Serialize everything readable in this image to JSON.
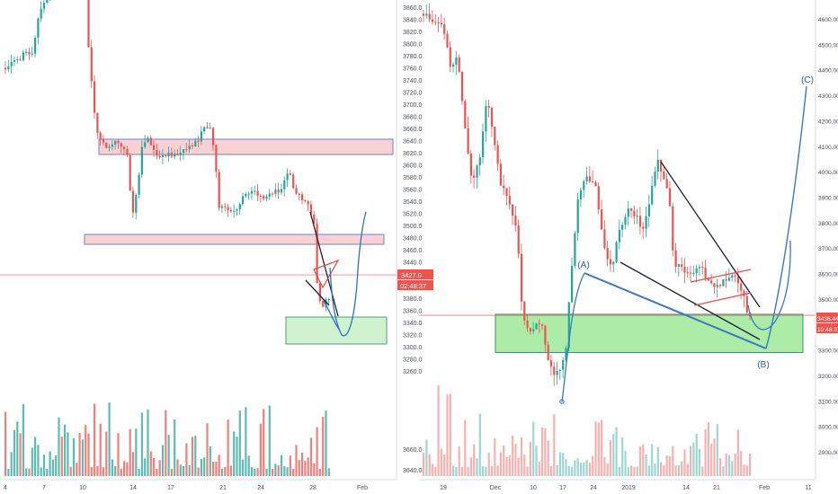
{
  "chart_data": [
    {
      "type": "candlestick",
      "title": "",
      "x_ticks": [
        "4",
        "7",
        "10",
        "14",
        "17",
        "21",
        "24",
        "28",
        "Feb"
      ],
      "y_ticks": [
        "3260.0",
        "3280.0",
        "3300.0",
        "3320.0",
        "3340.0",
        "3360.0",
        "3380.0",
        "3400.0",
        "3420.0",
        "3440.0",
        "3460.0",
        "3480.0",
        "3500.0",
        "3520.0",
        "3540.0",
        "3560.0",
        "3580.0",
        "3600.0",
        "3620.0",
        "3640.0",
        "3660.0",
        "3680.0",
        "3700.0",
        "3720.0",
        "3740.0",
        "3760.0",
        "3780.0",
        "3800.0",
        "3820.0",
        "3840.0",
        "3860.0"
      ],
      "volume_ticks": [
        "3640.0",
        "3660.0"
      ],
      "y_range": [
        3240,
        3870
      ],
      "price_badge": "3427.0",
      "timer_badge": "02:48:37",
      "annotations": {
        "zones": [
          {
            "label": "",
            "low": 3664,
            "high": 3680,
            "color": "#f28b8b"
          },
          {
            "label": "",
            "low": 3484,
            "high": 3494,
            "color": "#f28b8b"
          },
          {
            "label": "",
            "low": 3290,
            "high": 3318,
            "color": "#9be59b"
          }
        ],
        "triangle": "red",
        "trendlines": "black",
        "projection": "blue"
      },
      "colors": {
        "up": "#26a69a",
        "down": "#ef5350",
        "price_line": "#ef5350"
      }
    },
    {
      "type": "candlestick",
      "title": "",
      "x_ticks": [
        "19",
        "Dec",
        "10",
        "17",
        "24",
        "2019",
        "14",
        "21",
        "Feb",
        "11"
      ],
      "y_ticks": [
        "3200.00",
        "3300.00",
        "3400.00",
        "3500.00",
        "3600.00",
        "3700.00",
        "3800.00",
        "3900.00",
        "4000.00",
        "4100.00",
        "4200.00",
        "4300.00",
        "4400.00",
        "4500.00",
        "4600.00"
      ],
      "volume_ticks": [
        "2900.00",
        "3000.00",
        "3100.00"
      ],
      "y_range": [
        3100,
        4650
      ],
      "price_badge": "3436.44",
      "timer_badge": "10:48:37",
      "wave_labels": [
        "(A)",
        "(B)",
        "(C)"
      ],
      "annotations": {
        "zones": [
          {
            "label": "",
            "low": 3290,
            "high": 3440,
            "color": "#9be59b"
          }
        ],
        "channel": "red",
        "trendlines": "black",
        "projection": "blue"
      },
      "colors": {
        "up": "#26a69a",
        "down": "#ef5350",
        "price_line": "#ef5350"
      }
    }
  ]
}
